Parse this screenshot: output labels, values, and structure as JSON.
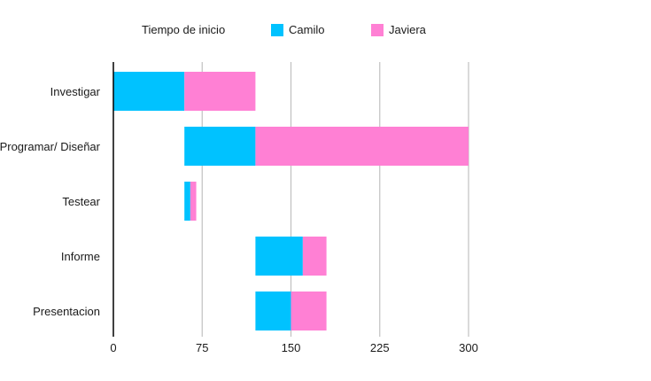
{
  "chart_data": {
    "type": "bar",
    "orientation": "horizontal",
    "stacked": true,
    "legend_title": "Tiempo de inicio",
    "categories": [
      "Investigar",
      "Programar/ Diseñar",
      "Testear",
      "Informe",
      "Presentacion"
    ],
    "start": [
      0,
      60,
      60,
      120,
      120
    ],
    "series": [
      {
        "name": "Camilo",
        "color": "#00C2FF",
        "values": [
          60,
          60,
          5,
          40,
          30
        ]
      },
      {
        "name": "Javiera",
        "color": "#FF80D4",
        "values": [
          60,
          180,
          5,
          20,
          30
        ]
      }
    ],
    "xticks": [
      "0",
      "75",
      "150",
      "225",
      "300"
    ],
    "xlim": [
      0,
      300
    ],
    "grid": true,
    "legend_position": "top"
  }
}
